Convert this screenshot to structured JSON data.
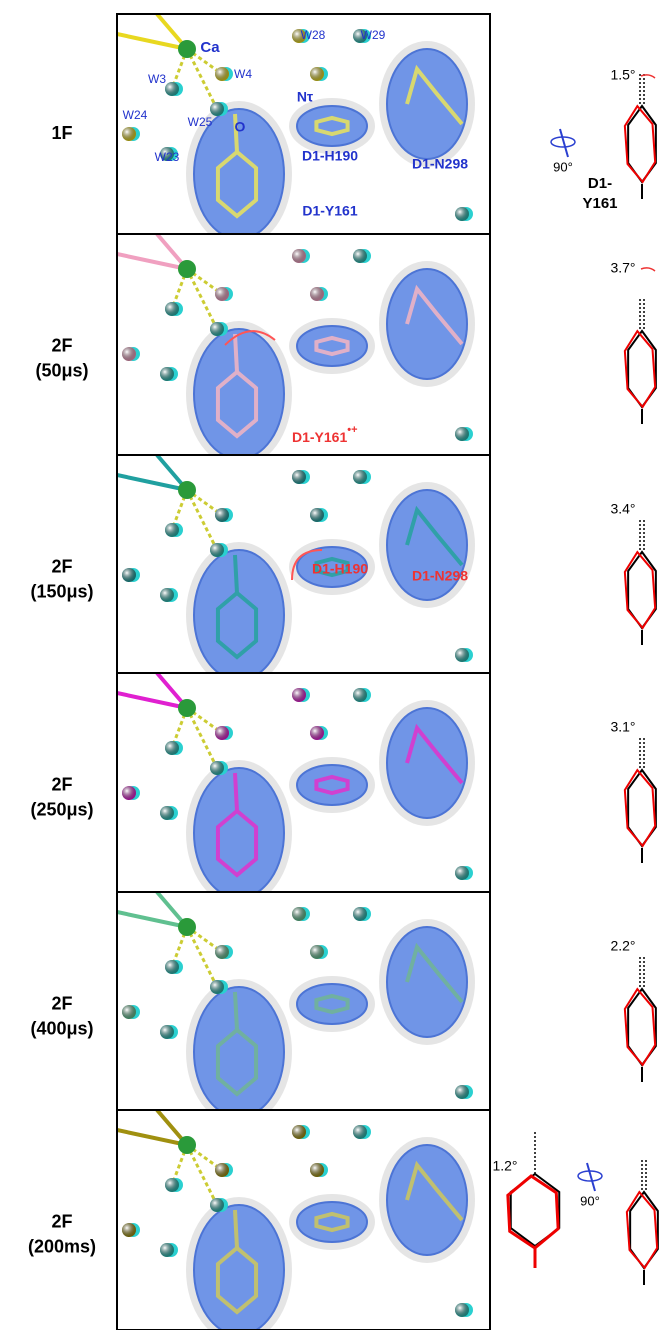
{
  "panels": [
    {
      "label": [
        "1F"
      ],
      "angle": "1.5°",
      "rotation": "90°",
      "residue": [
        "D1-",
        "Y161"
      ],
      "annotations": [
        "Ca",
        "W28",
        "W29",
        "W3",
        "W4",
        "Nτ",
        "W24",
        "W25",
        "O",
        "D1-H190",
        "D1-N298",
        "W23",
        "D1-Y161"
      ]
    },
    {
      "label": [
        "2F",
        "(50μs)"
      ],
      "angle": "3.7°",
      "annotations": [
        "D1-Y161",
        "•+"
      ]
    },
    {
      "label": [
        "2F",
        "(150μs)"
      ],
      "angle": "3.4°",
      "annotations": [
        "D1-H190",
        "D1-N298"
      ]
    },
    {
      "label": [
        "2F",
        "(250μs)"
      ],
      "angle": "3.1°",
      "annotations": []
    },
    {
      "label": [
        "2F",
        "(400μs)"
      ],
      "angle": "2.2°",
      "annotations": []
    },
    {
      "label": [
        "2F",
        "(200ms)"
      ],
      "angle": "1.2°",
      "rotation": "90°",
      "annotations": []
    }
  ]
}
